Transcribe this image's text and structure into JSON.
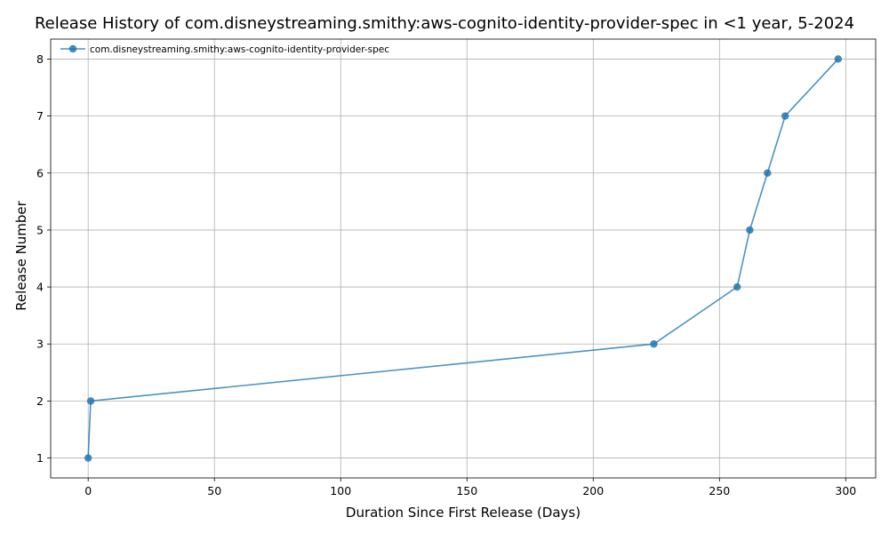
{
  "chart_data": {
    "type": "line",
    "title": "Release History of com.disneystreaming.smithy:aws-cognito-identity-provider-spec in <1 year, 5-2024",
    "xlabel": "Duration Since First Release (Days)",
    "ylabel": "Release Number",
    "xlim": [
      -14.85,
      311.85
    ],
    "ylim": [
      0.65,
      8.35
    ],
    "xticks": [
      0,
      50,
      100,
      150,
      200,
      250,
      300
    ],
    "yticks": [
      1,
      2,
      3,
      4,
      5,
      6,
      7,
      8
    ],
    "grid": true,
    "legend_position": "top-left",
    "series": [
      {
        "name": "com.disneystreaming.smithy:aws-cognito-identity-provider-spec",
        "color": "#1f77b4",
        "x": [
          0,
          1,
          224,
          257,
          262,
          269,
          276,
          297
        ],
        "y": [
          1,
          2,
          3,
          4,
          5,
          6,
          7,
          8
        ]
      }
    ]
  }
}
